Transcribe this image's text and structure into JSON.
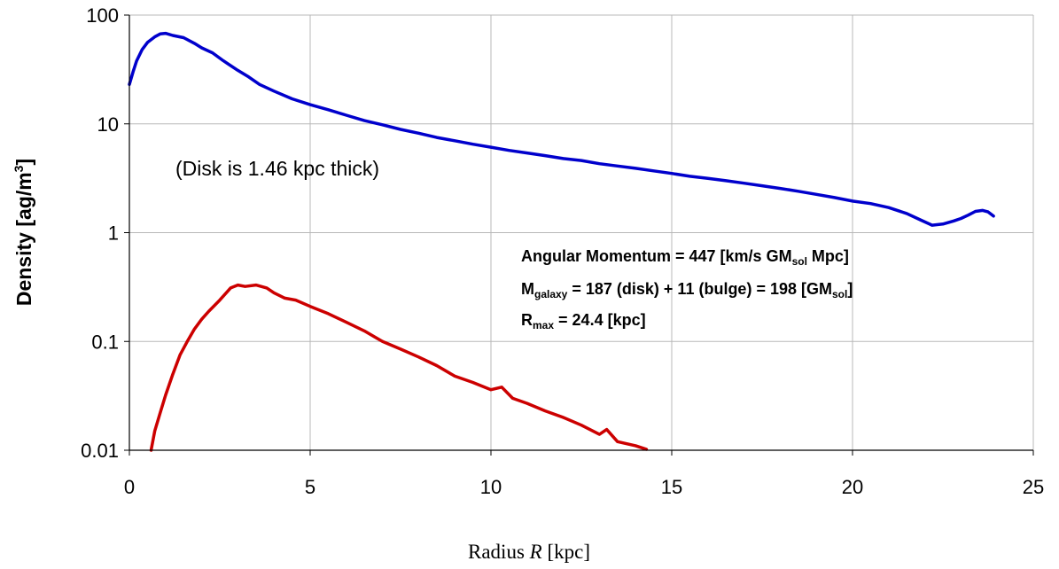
{
  "chart_data": {
    "type": "line",
    "title": "",
    "xlabel": "",
    "xlabel_prefix": "Radius ",
    "xlabel_var": "R",
    "xlabel_unit": " [kpc]",
    "ylabel": "Density [ag/m",
    "ylabel_sup": "3",
    "ylabel_end": "]",
    "xlim": [
      0,
      25
    ],
    "ylim": [
      0.01,
      100
    ],
    "yscale": "log",
    "grid": true,
    "x_ticks": [
      "0",
      "5",
      "10",
      "15",
      "20",
      "25"
    ],
    "y_ticks": [
      "0.01",
      "0.1",
      "1",
      "10",
      "100"
    ],
    "annotations": {
      "disk_note": "(Disk is 1.46 kpc thick)",
      "angular_momentum": "Angular Momentum = 447 [km/s GM",
      "angular_momentum_sub": "sol",
      "angular_momentum_end": " Mpc]",
      "mass_prefix": "M",
      "mass_sub": "galaxy",
      "mass_text": " = 187 (disk) + 11 (bulge) = 198 [GM",
      "mass_sub2": "sol",
      "mass_end": "]",
      "rmax_prefix": "R",
      "rmax_sub": "max",
      "rmax_text": " = 24.4 [kpc]"
    },
    "series": [
      {
        "color": "#0000cc",
        "x": [
          0,
          0.1,
          0.2,
          0.35,
          0.5,
          0.7,
          0.85,
          1.0,
          1.2,
          1.5,
          1.8,
          2.0,
          2.3,
          2.6,
          3.0,
          3.3,
          3.6,
          4.0,
          4.5,
          5.0,
          5.5,
          6.0,
          6.5,
          7.0,
          7.5,
          8.0,
          8.5,
          9.0,
          9.5,
          10.0,
          10.5,
          11.0,
          11.5,
          12.0,
          12.5,
          13.0,
          13.5,
          14.0,
          14.5,
          15.0,
          15.5,
          16.0,
          16.5,
          17.0,
          17.5,
          18.0,
          18.5,
          19.0,
          19.5,
          20.0,
          20.5,
          21.0,
          21.5,
          21.9,
          22.2,
          22.5,
          22.8,
          23.0,
          23.2,
          23.4,
          23.6,
          23.75,
          23.9
        ],
        "y": [
          23,
          30,
          38,
          48,
          56,
          63,
          67,
          68,
          65,
          62,
          55,
          50,
          45,
          38,
          31,
          27,
          23,
          20,
          17,
          15,
          13.5,
          12,
          10.7,
          9.8,
          8.9,
          8.2,
          7.5,
          7.0,
          6.5,
          6.1,
          5.7,
          5.4,
          5.1,
          4.8,
          4.6,
          4.3,
          4.1,
          3.9,
          3.7,
          3.5,
          3.3,
          3.15,
          3.0,
          2.85,
          2.7,
          2.55,
          2.4,
          2.25,
          2.1,
          1.95,
          1.85,
          1.7,
          1.5,
          1.3,
          1.17,
          1.2,
          1.28,
          1.35,
          1.45,
          1.57,
          1.6,
          1.55,
          1.42
        ]
      },
      {
        "color": "#cc0000",
        "x": [
          0.6,
          0.7,
          0.85,
          1.0,
          1.2,
          1.4,
          1.6,
          1.8,
          2.0,
          2.2,
          2.5,
          2.8,
          3.0,
          3.2,
          3.5,
          3.8,
          4.0,
          4.3,
          4.6,
          5.0,
          5.5,
          6.0,
          6.5,
          7.0,
          7.5,
          8.0,
          8.5,
          9.0,
          9.5,
          10.0,
          10.3,
          10.6,
          11.0,
          11.5,
          12.0,
          12.5,
          13.0,
          13.2,
          13.5,
          14.0,
          14.3
        ],
        "y": [
          0.01,
          0.015,
          0.022,
          0.032,
          0.05,
          0.075,
          0.1,
          0.13,
          0.16,
          0.19,
          0.24,
          0.31,
          0.33,
          0.32,
          0.33,
          0.31,
          0.28,
          0.25,
          0.24,
          0.21,
          0.18,
          0.15,
          0.125,
          0.1,
          0.085,
          0.072,
          0.06,
          0.048,
          0.042,
          0.036,
          0.038,
          0.03,
          0.027,
          0.023,
          0.02,
          0.017,
          0.014,
          0.0155,
          0.012,
          0.011,
          0.0102
        ]
      }
    ]
  }
}
